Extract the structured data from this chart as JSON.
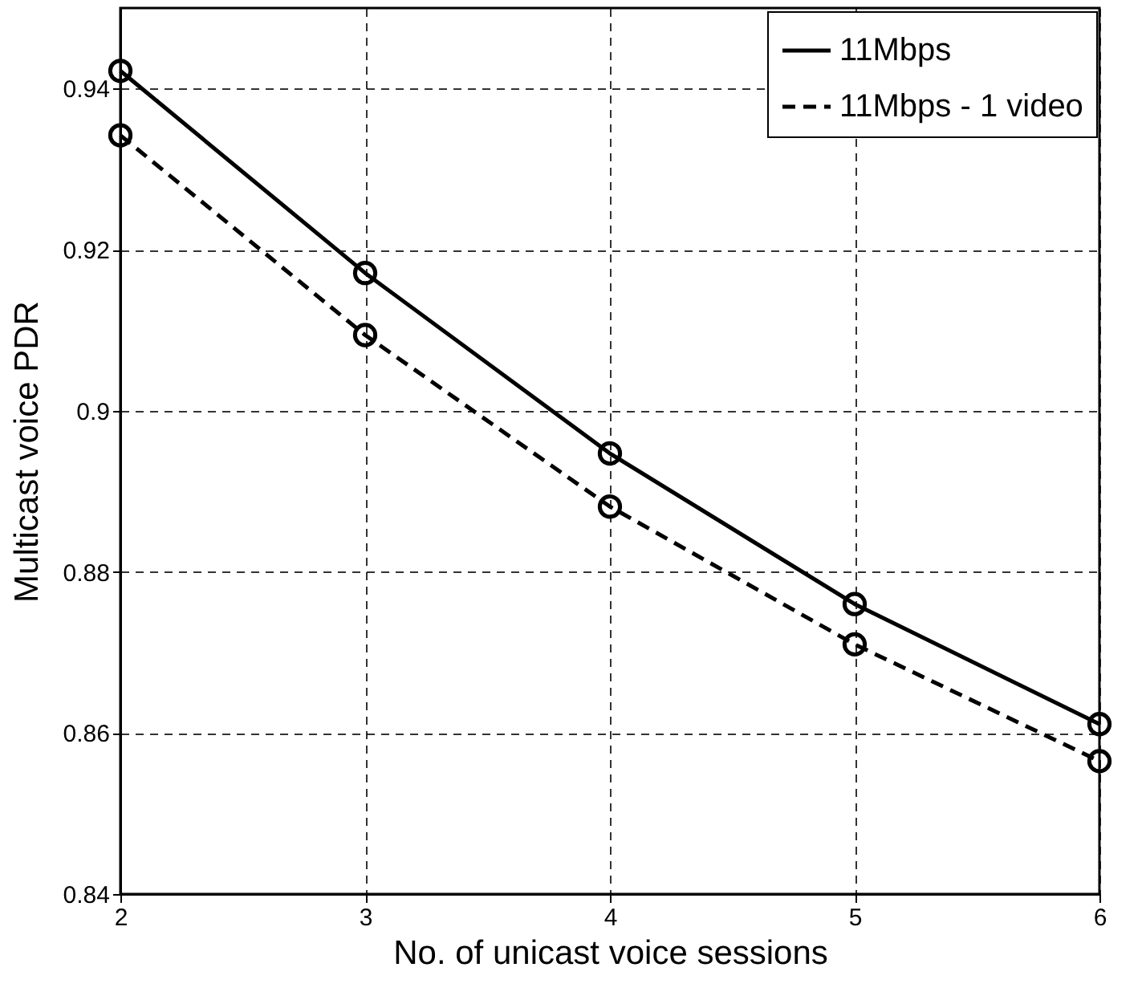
{
  "chart_data": {
    "type": "line",
    "xlabel": "No. of unicast voice sessions",
    "ylabel": "Multicast voice PDR",
    "x": [
      2,
      3,
      4,
      5,
      6
    ],
    "series": [
      {
        "name": "11Mbps",
        "color": "#000000",
        "line_style": "solid",
        "values": [
          0.9422,
          0.9171,
          0.8947,
          0.876,
          0.8611
        ]
      },
      {
        "name": "11Mbps - 1 video",
        "color": "#000000",
        "line_style": "dashed",
        "values": [
          0.9342,
          0.9094,
          0.8881,
          0.871,
          0.8565
        ]
      }
    ],
    "xlim": [
      2,
      6
    ],
    "xticks": [
      2,
      3,
      4,
      5,
      6
    ],
    "ylim": [
      0.84,
      0.95
    ],
    "yticks": [
      0.84,
      0.86,
      0.88,
      0.9,
      0.92,
      0.94
    ],
    "grid": true,
    "legend": "top right",
    "marker": "circle"
  }
}
